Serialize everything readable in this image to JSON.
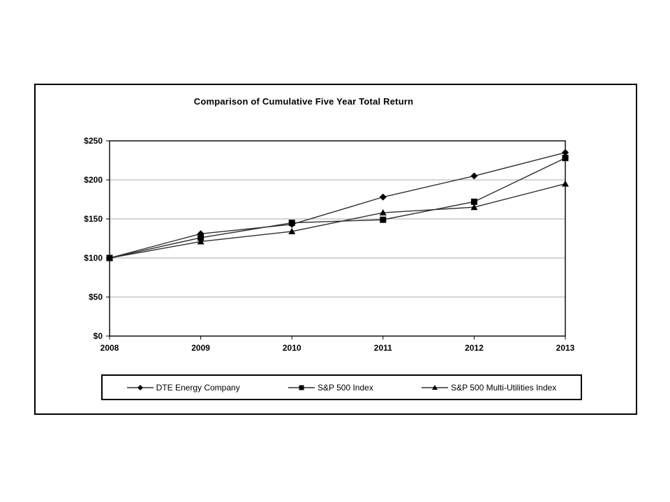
{
  "chart_data": {
    "type": "line",
    "title": "Comparison of Cumulative Five Year Total Return",
    "categories": [
      "2008",
      "2009",
      "2010",
      "2011",
      "2012",
      "2013"
    ],
    "series": [
      {
        "name": "DTE Energy Company",
        "marker": "diamond",
        "values": [
          100,
          131,
          143,
          178,
          205,
          235
        ]
      },
      {
        "name": "S&P 500 Index",
        "marker": "square",
        "values": [
          100,
          126,
          145,
          149,
          172,
          228
        ]
      },
      {
        "name": "S&P 500 Multi-Utilities Index",
        "marker": "triangle",
        "values": [
          100,
          121,
          134,
          158,
          165,
          195
        ]
      }
    ],
    "xlabel": "",
    "ylabel": "",
    "ylim": [
      0,
      250
    ],
    "y_ticks": [
      {
        "value": 0,
        "label": "$0"
      },
      {
        "value": 50,
        "label": "$50"
      },
      {
        "value": 100,
        "label": "$100"
      },
      {
        "value": 150,
        "label": "$150"
      },
      {
        "value": 200,
        "label": "$200"
      },
      {
        "value": 250,
        "label": "$250"
      }
    ],
    "grid": "horizontal",
    "legend_position": "bottom",
    "colors": {
      "line": "#2e2e2e",
      "marker": "#000000",
      "gridline": "#aaaaaa",
      "plot_border": "#000000",
      "frame_border": "#000000",
      "text": "#000000"
    }
  }
}
